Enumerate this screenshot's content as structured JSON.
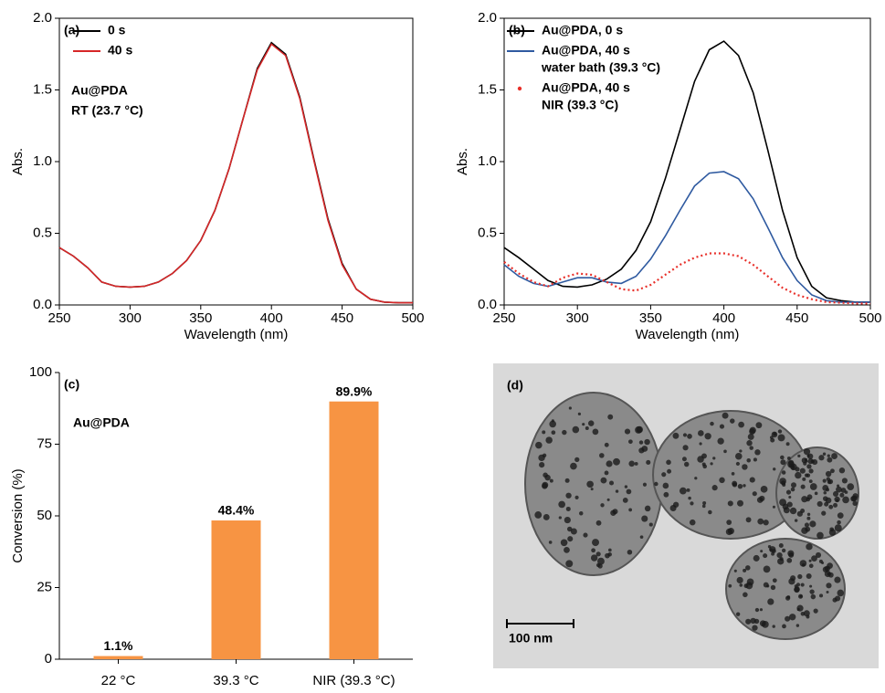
{
  "chart_data": [
    {
      "type": "line",
      "panel_label": "(a)",
      "xlabel": "Wavelength (nm)",
      "ylabel": "Abs.",
      "xlim": [
        250,
        500
      ],
      "xticks": [
        250,
        300,
        350,
        400,
        450,
        500
      ],
      "ylim": [
        0,
        2
      ],
      "yticks": [
        {
          "value": 0,
          "label": "0.0"
        },
        0.5,
        {
          "value": 1,
          "label": "1.0"
        },
        1.5,
        {
          "value": 2,
          "label": "2.0"
        }
      ],
      "annotations": [
        "Au@PDA",
        "RT (23.7 °C)"
      ],
      "x": [
        250,
        260,
        270,
        280,
        290,
        300,
        310,
        320,
        330,
        340,
        350,
        360,
        370,
        380,
        390,
        400,
        410,
        420,
        430,
        440,
        450,
        460,
        470,
        480,
        490,
        500
      ],
      "series": [
        {
          "name": "0 s",
          "color": "#000000",
          "values": [
            0.4,
            0.34,
            0.26,
            0.16,
            0.13,
            0.125,
            0.13,
            0.16,
            0.22,
            0.31,
            0.45,
            0.66,
            0.95,
            1.3,
            1.65,
            1.83,
            1.75,
            1.45,
            1.02,
            0.6,
            0.29,
            0.11,
            0.04,
            0.02,
            0.015,
            0.015
          ]
        },
        {
          "name": "40 s",
          "color": "#d62728",
          "values": [
            0.4,
            0.34,
            0.26,
            0.16,
            0.13,
            0.125,
            0.13,
            0.16,
            0.22,
            0.31,
            0.45,
            0.66,
            0.95,
            1.3,
            1.64,
            1.82,
            1.74,
            1.44,
            1.01,
            0.59,
            0.28,
            0.11,
            0.04,
            0.02,
            0.015,
            0.015
          ]
        }
      ]
    },
    {
      "type": "line",
      "panel_label": "(b)",
      "xlabel": "Wavelength (nm)",
      "ylabel": "Abs.",
      "xlim": [
        250,
        500
      ],
      "xticks": [
        250,
        300,
        350,
        400,
        450,
        500
      ],
      "ylim": [
        0,
        2
      ],
      "yticks": [
        {
          "value": 0,
          "label": "0.0"
        },
        0.5,
        {
          "value": 1,
          "label": "1.0"
        },
        1.5,
        {
          "value": 2,
          "label": "2.0"
        }
      ],
      "x": [
        250,
        260,
        270,
        280,
        290,
        300,
        310,
        320,
        330,
        340,
        350,
        360,
        370,
        380,
        390,
        400,
        410,
        420,
        430,
        440,
        450,
        460,
        470,
        480,
        490,
        500
      ],
      "series": [
        {
          "name": "Au@PDA, 0 s",
          "color": "#000000",
          "values": [
            0.4,
            0.33,
            0.25,
            0.17,
            0.13,
            0.125,
            0.14,
            0.18,
            0.25,
            0.38,
            0.58,
            0.88,
            1.22,
            1.56,
            1.78,
            1.84,
            1.74,
            1.48,
            1.08,
            0.66,
            0.33,
            0.13,
            0.05,
            0.03,
            0.02,
            0.02
          ]
        },
        {
          "name": "Au@PDA, 40 s",
          "legend_note": "water bath (39.3 °C)",
          "color": "#2f5aa0",
          "values": [
            0.28,
            0.2,
            0.15,
            0.13,
            0.16,
            0.19,
            0.19,
            0.16,
            0.15,
            0.2,
            0.32,
            0.48,
            0.66,
            0.83,
            0.92,
            0.93,
            0.88,
            0.74,
            0.54,
            0.33,
            0.17,
            0.07,
            0.03,
            0.02,
            0.02,
            0.02
          ]
        },
        {
          "name": "Au@PDA, 40 s",
          "legend_note": "NIR (39.3 °C)",
          "color": "#e8302a",
          "dashed": true,
          "values": [
            0.3,
            0.22,
            0.16,
            0.13,
            0.19,
            0.22,
            0.21,
            0.16,
            0.11,
            0.1,
            0.14,
            0.21,
            0.28,
            0.33,
            0.36,
            0.36,
            0.34,
            0.28,
            0.2,
            0.12,
            0.07,
            0.04,
            0.02,
            0.015,
            0.01,
            0.01
          ]
        }
      ]
    },
    {
      "type": "bar",
      "panel_label": "(c)",
      "ylabel": "Conversion (%)",
      "annotations": [
        "Au@PDA"
      ],
      "categories": [
        "22 °C",
        "39.3 °C",
        "NIR (39.3 °C)"
      ],
      "values": [
        1.1,
        48.4,
        89.9
      ],
      "value_labels": [
        "1.1%",
        "48.4%",
        "89.9%"
      ],
      "color": "#f79443",
      "ylim": [
        0,
        100
      ],
      "yticks": [
        0,
        25,
        50,
        75,
        100
      ]
    }
  ],
  "image_panel": {
    "panel_label": "(d)",
    "scale_bar": "100 nm"
  }
}
